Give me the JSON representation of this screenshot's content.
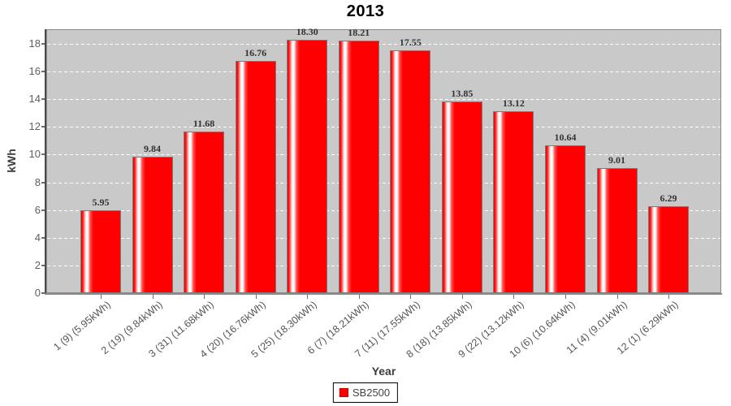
{
  "title": "2013",
  "colors": {
    "bar": "#ff0000",
    "plot_background": "#c9c9c9",
    "gridline": "#ffffff",
    "tick_label": "#555555",
    "value_label": "#333333",
    "axis_title": "#3c3c3c",
    "title": "#000000"
  },
  "legend": {
    "position": "bottom",
    "items": [
      {
        "label": "SB2500",
        "color": "#ff0000"
      }
    ]
  },
  "chart_data": {
    "type": "bar",
    "title": "2013",
    "xlabel": "Year",
    "ylabel": "kWh",
    "ylim": [
      0,
      19.05
    ],
    "y_ticks": [
      0,
      2,
      4,
      6,
      8,
      10,
      12,
      14,
      16,
      18
    ],
    "grid": "horizontal dashed white on gray plot",
    "legend_position": "bottom",
    "categories": [
      "1 (9)  (5.95kWh)",
      "2 (19)  (9.84kWh)",
      "3 (31)  (11.68kWh)",
      "4 (20)  (16.76kWh)",
      "5 (25)  (18.30kWh)",
      "6 (7)  (18.21kWh)",
      "7 (11)  (17.55kWh)",
      "8 (18)  (13.85kWh)",
      "9 (22)  (13.12kWh)",
      "10 (6)  (10.64kWh)",
      "11 (4)  (9.01kWh)",
      "12 (1)  (6.29kWh)"
    ],
    "series": [
      {
        "name": "SB2500",
        "color": "#ff0000",
        "values": [
          5.95,
          9.84,
          11.68,
          16.76,
          18.3,
          18.21,
          17.55,
          13.85,
          13.12,
          10.64,
          9.01,
          6.29
        ]
      }
    ],
    "bar_value_labels": [
      "5.95",
      "9.84",
      "11.68",
      "16.76",
      "18.30",
      "18.21",
      "17.55",
      "13.85",
      "13.12",
      "10.64",
      "9.01",
      "6.29"
    ]
  }
}
